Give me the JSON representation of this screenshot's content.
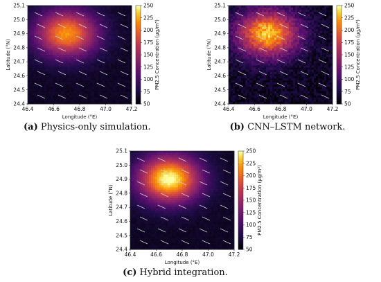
{
  "figure": {
    "panels": [
      {
        "id": "a",
        "caption_letter": "(a)",
        "caption_text": " Physics-only simulation.",
        "peak_strength": 0.78,
        "noise": 0.05
      },
      {
        "id": "b",
        "caption_letter": "(b)",
        "caption_text": " CNN–LSTM network.",
        "peak_strength": 0.86,
        "noise": 0.16
      },
      {
        "id": "c",
        "caption_letter": "(c)",
        "caption_text": " Hybrid integration.",
        "peak_strength": 0.95,
        "noise": 0.04
      }
    ]
  },
  "chart_data": [
    {
      "type": "heatmap",
      "xlabel": "Longitude (°E)",
      "ylabel": "Latitude (°N)",
      "colorbar_label": "PM2.5 Concentration (μg/m³)",
      "xlim": [
        46.4,
        47.2
      ],
      "ylim": [
        24.4,
        25.1
      ],
      "xticks": [
        "46.4",
        "46.6",
        "46.8",
        "47.0",
        "47.2"
      ],
      "yticks": [
        "24.4",
        "24.5",
        "24.6",
        "24.7",
        "24.8",
        "24.9",
        "25.0",
        "25.1"
      ],
      "colorbar_range": [
        50,
        250
      ],
      "colorbar_ticks": [
        "50",
        "75",
        "100",
        "125",
        "150",
        "175",
        "200",
        "225",
        "250"
      ],
      "plume_center": [
        46.7,
        24.9
      ],
      "overlay": "wind vectors",
      "colormap": "inferno"
    },
    {
      "type": "heatmap",
      "xlabel": "Longitude (°E)",
      "ylabel": "Latitude (°N)",
      "colorbar_label": "PM2.5 Concentration (μg/m³)",
      "xlim": [
        46.4,
        47.2
      ],
      "ylim": [
        24.4,
        25.1
      ],
      "xticks": [
        "46.4",
        "46.6",
        "46.8",
        "47.0",
        "47.2"
      ],
      "yticks": [
        "24.4",
        "24.5",
        "24.6",
        "24.7",
        "24.8",
        "24.9",
        "25.0",
        "25.1"
      ],
      "colorbar_range": [
        50,
        250
      ],
      "colorbar_ticks": [
        "50",
        "75",
        "100",
        "125",
        "150",
        "175",
        "200",
        "225",
        "250"
      ],
      "plume_center": [
        46.7,
        24.9
      ],
      "overlay": "wind vectors",
      "colormap": "inferno"
    },
    {
      "type": "heatmap",
      "xlabel": "Longitude (°E)",
      "ylabel": "Latitude (°N)",
      "colorbar_label": "PM2.5 Concentration (μg/m³)",
      "xlim": [
        46.4,
        47.2
      ],
      "ylim": [
        24.4,
        25.1
      ],
      "xticks": [
        "46.4",
        "46.6",
        "46.8",
        "47.0",
        "47.2"
      ],
      "yticks": [
        "24.4",
        "24.5",
        "24.6",
        "24.7",
        "24.8",
        "24.9",
        "25.0",
        "25.1"
      ],
      "colorbar_range": [
        50,
        250
      ],
      "colorbar_ticks": [
        "50",
        "75",
        "100",
        "125",
        "150",
        "175",
        "200",
        "225",
        "250"
      ],
      "plume_center": [
        46.7,
        24.9
      ],
      "overlay": "wind vectors",
      "colormap": "inferno"
    }
  ]
}
